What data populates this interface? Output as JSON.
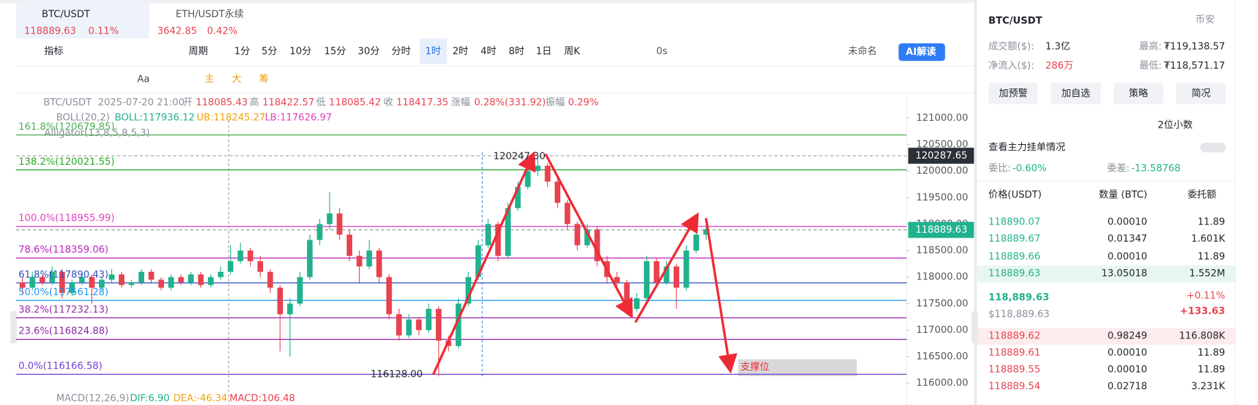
{
  "tabs": [
    {
      "symbol": "BTC/USDT",
      "price": "118889.63",
      "change": "0.11%"
    },
    {
      "symbol": "ETH/USDT永续",
      "price": "3642.85",
      "change": "0.42%"
    }
  ],
  "toolbar": {
    "indicator": "指标",
    "period": "周期",
    "intervals": [
      "1分",
      "5分",
      "10分",
      "15分",
      "30分",
      "分时",
      "1时",
      "2时",
      "4时",
      "8时",
      "1日",
      "周K"
    ],
    "active_interval": 6,
    "countdown": "0s",
    "layout": "未命名",
    "ai": "AI解读"
  },
  "tools": [
    "Aa",
    "主",
    "大",
    "筹"
  ],
  "chart_data": {
    "type": "candlestick",
    "info": {
      "symbol": "BTC/USDT",
      "time": "2025-07-20 21:00",
      "open_label": "开",
      "open": "118085.43",
      "high_label": "高",
      "high": "118422.57",
      "low_label": "低",
      "low": "118085.42",
      "close_label": "收",
      "close": "118417.35",
      "change_label": "涨幅",
      "change": "0.28%(331.92)",
      "amplitude_label": "振幅",
      "amplitude": "0.29%"
    },
    "indicators": {
      "boll": "BOLL(20,2)",
      "boll_mid": "BOLL:117936.12",
      "boll_ub": "UB:118245.27",
      "boll_lb": "LB:117626.97",
      "alligator": "Alligator(13,8,5,8,5,3)",
      "macd": "MACD(12,26,9)",
      "dif": "DIF:6.90",
      "dea": "DEA:-46.34",
      "macd_value": "MACD:106.48"
    },
    "fib": [
      {
        "label": "161.8%(120679.85)",
        "value": 120679.85,
        "color": "#4caf50"
      },
      {
        "label": "138.2%(120021.55)",
        "value": 120021.55,
        "color": "#22a822"
      },
      {
        "label": "100.0%(118955.99)",
        "value": 118955.99,
        "color": "#e040c0"
      },
      {
        "label": "78.6%(118359.06)",
        "value": 118359.06,
        "color": "#c020c0"
      },
      {
        "label": "61.8%(117890.43)",
        "value": 117890.43,
        "color": "#3050c0"
      },
      {
        "label": "50.0%(117561.28)",
        "value": 117561.28,
        "color": "#2196f3"
      },
      {
        "label": "38.2%(117232.13)",
        "value": 117232.13,
        "color": "#9c27b0"
      },
      {
        "label": "23.6%(116824.88)",
        "value": 116824.88,
        "color": "#8e24aa"
      },
      {
        "label": "0.0%(116166.58)",
        "value": 116166.58,
        "color": "#7040d0"
      }
    ],
    "ylim": [
      115860,
      121410
    ],
    "yticks": [
      {
        "value": 116000,
        "label": "116000.00"
      },
      {
        "value": 116500,
        "label": "116500.00"
      },
      {
        "value": 117000,
        "label": "117000.00"
      },
      {
        "value": 117500,
        "label": "117500.00"
      },
      {
        "value": 118000,
        "label": "118000.00"
      },
      {
        "value": 118500,
        "label": "118500.00"
      },
      {
        "value": 119000,
        "label": "119000.00"
      },
      {
        "value": 119500,
        "label": "119500.00"
      },
      {
        "value": 120000,
        "label": "120000.00"
      },
      {
        "value": 120500,
        "label": "120500.00"
      },
      {
        "value": 121000,
        "label": "121000.00"
      }
    ],
    "price_tags": [
      {
        "value": 120287.65,
        "label": "120287.65",
        "color": "#2b2f36"
      },
      {
        "value": 118889.63,
        "label": "118889.63",
        "color": "#20b28c"
      }
    ],
    "annotations": [
      "120247.30",
      "116128.00"
    ],
    "support": "支撑位",
    "up_color": "#20b28c",
    "down_color": "#e8424f",
    "candles": [
      [
        117900,
        118000,
        117700,
        117800
      ],
      [
        117800,
        118100,
        117750,
        118000
      ],
      [
        118000,
        118050,
        117850,
        117900
      ],
      [
        117900,
        118200,
        117850,
        118100
      ],
      [
        118100,
        118150,
        117600,
        117700
      ],
      [
        117700,
        117950,
        117650,
        117900
      ],
      [
        117900,
        118100,
        117850,
        118000
      ],
      [
        118000,
        118050,
        117500,
        117800
      ],
      [
        117800,
        118000,
        117750,
        117950
      ],
      [
        117950,
        118150,
        117900,
        118050
      ],
      [
        118050,
        118100,
        117800,
        117850
      ],
      [
        117850,
        117950,
        117800,
        117900
      ],
      [
        117900,
        118150,
        117850,
        118100
      ],
      [
        118100,
        118150,
        117900,
        117950
      ],
      [
        117950,
        118000,
        117750,
        117800
      ],
      [
        117800,
        118050,
        117750,
        118000
      ],
      [
        118000,
        118050,
        117850,
        117900
      ],
      [
        117900,
        118100,
        117850,
        118050
      ],
      [
        118050,
        118100,
        117800,
        117850
      ],
      [
        117850,
        118050,
        117800,
        118000
      ],
      [
        118000,
        118200,
        117950,
        118100
      ],
      [
        118100,
        118600,
        118050,
        118300
      ],
      [
        118300,
        118650,
        118250,
        118500
      ],
      [
        118500,
        118550,
        118200,
        118300
      ],
      [
        118300,
        118400,
        118000,
        118100
      ],
      [
        118100,
        118150,
        117700,
        117800
      ],
      [
        117800,
        117850,
        116600,
        117300
      ],
      [
        117300,
        117600,
        116500,
        117500
      ],
      [
        117500,
        118100,
        117450,
        118000
      ],
      [
        118000,
        118800,
        117950,
        118700
      ],
      [
        118700,
        119100,
        118600,
        119000
      ],
      [
        119000,
        119600,
        118900,
        119200
      ],
      [
        119200,
        119300,
        118700,
        118800
      ],
      [
        118800,
        118900,
        118300,
        118400
      ],
      [
        118400,
        118500,
        117900,
        118200
      ],
      [
        118200,
        118700,
        118150,
        118500
      ],
      [
        118500,
        118550,
        117900,
        118000
      ],
      [
        118000,
        118050,
        117200,
        117300
      ],
      [
        117300,
        117400,
        116800,
        116900
      ],
      [
        116900,
        117300,
        116850,
        117200
      ],
      [
        117200,
        117250,
        116900,
        117000
      ],
      [
        117000,
        117500,
        116950,
        117400
      ],
      [
        117400,
        117450,
        116128,
        116800
      ],
      [
        116800,
        116900,
        116600,
        116700
      ],
      [
        116700,
        117600,
        116650,
        117500
      ],
      [
        117500,
        118100,
        117450,
        118000
      ],
      [
        118000,
        118700,
        117950,
        118600
      ],
      [
        118600,
        119100,
        118550,
        119000
      ],
      [
        119000,
        119050,
        118300,
        118400
      ],
      [
        118400,
        119400,
        118350,
        119300
      ],
      [
        119300,
        119800,
        119250,
        119700
      ],
      [
        119700,
        120100,
        119650,
        120000
      ],
      [
        120000,
        120247.3,
        119900,
        120100
      ],
      [
        120100,
        120150,
        119700,
        119800
      ],
      [
        119800,
        119850,
        119300,
        119400
      ],
      [
        119400,
        119450,
        118900,
        119000
      ],
      [
        119000,
        119050,
        118500,
        118600
      ],
      [
        118600,
        119000,
        118550,
        118900
      ],
      [
        118900,
        118950,
        118200,
        118300
      ],
      [
        118300,
        118400,
        117900,
        118000
      ],
      [
        118000,
        118100,
        117800,
        117900
      ],
      [
        117900,
        117950,
        117300,
        117400
      ],
      [
        117400,
        117700,
        117350,
        117600
      ],
      [
        117600,
        118400,
        117550,
        118300
      ],
      [
        118300,
        118350,
        117800,
        117900
      ],
      [
        117900,
        118300,
        117850,
        118200
      ],
      [
        118200,
        118250,
        117400,
        117800
      ],
      [
        117800,
        118600,
        117750,
        118500
      ],
      [
        118500,
        118900,
        118450,
        118800
      ],
      [
        118800,
        119000,
        118700,
        118900
      ]
    ]
  },
  "panel": {
    "symbol": "BTC/USDT",
    "exchange": "币安",
    "volume_label": "成交额($):",
    "volume": "1.3亿",
    "high_label": "最高:",
    "high": "₮119,138.57",
    "inflow_label": "净流入($):",
    "inflow": "286万",
    "low_label": "最低:",
    "low": "₮118,571.17",
    "buttons": [
      "加预警",
      "加自选",
      "策略",
      "简况"
    ],
    "decimals": "2位小数",
    "orders_link": "查看主力挂单情况",
    "ratio_label": "委比:",
    "ratio": "-0.60%",
    "diff_label": "委差:",
    "diff": "-13.58768",
    "headers": [
      "价格(USDT)",
      "数量 (BTC)",
      "委托额"
    ],
    "asks": [
      [
        "118890.07",
        "0.00010",
        "11.89"
      ],
      [
        "118889.67",
        "0.01347",
        "1.601K"
      ],
      [
        "118889.66",
        "0.00010",
        "11.89"
      ],
      [
        "118889.63",
        "13.05018",
        "1.552M"
      ]
    ],
    "last": "118,889.63",
    "last_usd": "$118,889.63",
    "last_change": "+0.11%",
    "last_diff": "+133.63",
    "bids": [
      [
        "118889.62",
        "0.98249",
        "116.808K"
      ],
      [
        "118889.61",
        "0.00010",
        "11.89"
      ],
      [
        "118889.55",
        "0.00010",
        "11.89"
      ],
      [
        "118889.54",
        "0.02718",
        "3.231K"
      ]
    ]
  }
}
